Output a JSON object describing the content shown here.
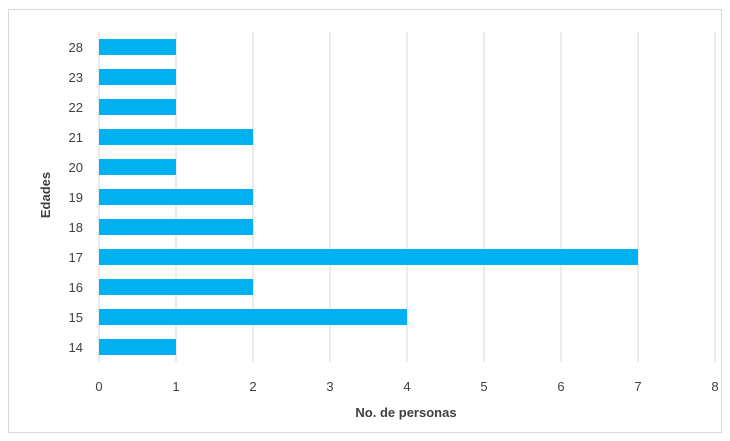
{
  "chart_data": {
    "type": "bar",
    "orientation": "horizontal",
    "title": "",
    "xlabel": "No. de personas",
    "ylabel": "Edades",
    "xlim": [
      0,
      8
    ],
    "xticks": [
      "0",
      "1",
      "2",
      "3",
      "4",
      "5",
      "6",
      "7",
      "8"
    ],
    "categories": [
      "14",
      "15",
      "16",
      "17",
      "18",
      "19",
      "20",
      "21",
      "22",
      "23",
      "28"
    ],
    "values": [
      1,
      4,
      2,
      7,
      2,
      2,
      1,
      2,
      1,
      1,
      1
    ],
    "grid": "vertical",
    "legend": "none",
    "bar_color": "#00b0f0"
  }
}
